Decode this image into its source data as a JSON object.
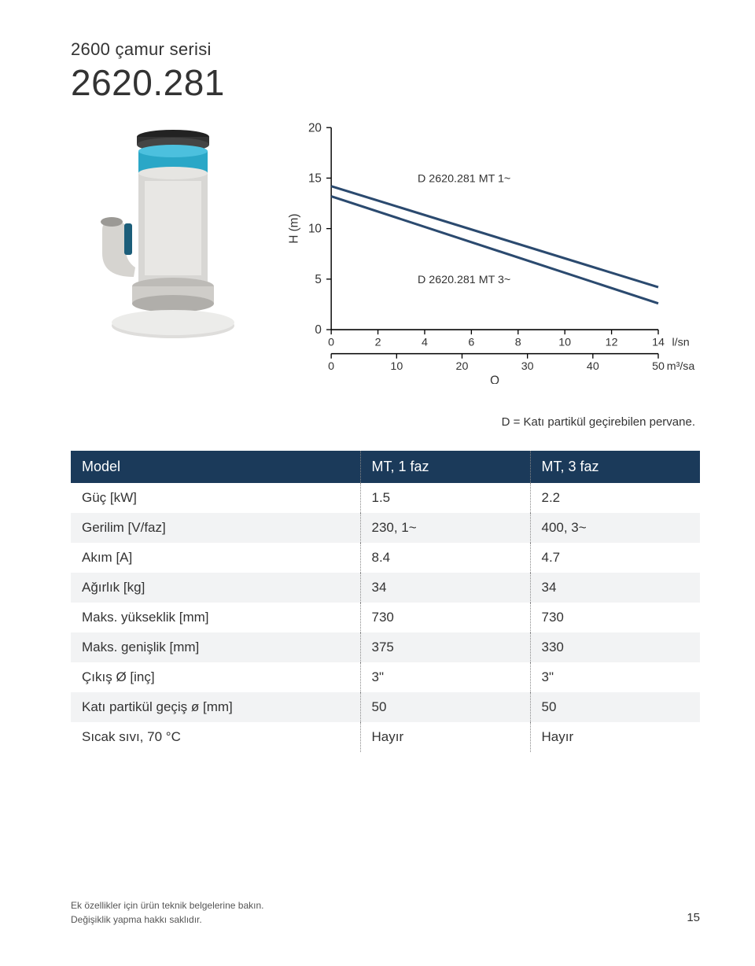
{
  "header": {
    "series_label": "2600 çamur serisi",
    "model_number": "2620.281"
  },
  "chart": {
    "type": "line",
    "y_label": "H (m)",
    "x_label": "Q",
    "ylim": [
      0,
      20
    ],
    "ytick_step": 5,
    "y_ticks": [
      0,
      5,
      10,
      15,
      20
    ],
    "x_primary_max": 14,
    "x_primary_ticks": [
      0,
      2,
      4,
      6,
      8,
      10,
      12,
      14
    ],
    "x_primary_unit": "l/sn",
    "x_secondary_max": 50,
    "x_secondary_ticks": [
      0,
      10,
      20,
      30,
      40,
      50
    ],
    "x_secondary_unit": "m³/sa",
    "line_color": "#2b4a6f",
    "line_width": 3,
    "axis_color": "#000000",
    "background_color": "#ffffff",
    "series": [
      {
        "label": "D 2620.281 MT 1~",
        "label_fontsize": 14,
        "points": [
          [
            0.0,
            14.2
          ],
          [
            14.0,
            4.2
          ]
        ]
      },
      {
        "label": "D 2620.281 MT 3~",
        "label_fontsize": 14,
        "points": [
          [
            0.0,
            13.2
          ],
          [
            14.0,
            2.6
          ]
        ]
      }
    ]
  },
  "footnote": "D = Katı partikül geçirebilen pervane.",
  "table": {
    "header_bg": "#1b3a5a",
    "alt_row_bg": "#f2f3f4",
    "dotted_color": "#888888",
    "columns": [
      "Model",
      "MT, 1 faz",
      "MT, 3 faz"
    ],
    "rows": [
      [
        "Güç [kW]",
        "1.5",
        "2.2"
      ],
      [
        "Gerilim [V/faz]",
        "230, 1~",
        "400, 3~"
      ],
      [
        "Akım [A]",
        "8.4",
        "4.7"
      ],
      [
        "Ağırlık [kg]",
        "34",
        "34"
      ],
      [
        "Maks. yükseklik [mm]",
        "730",
        "730"
      ],
      [
        "Maks. genişlik [mm]",
        "375",
        "330"
      ],
      [
        "Çıkış Ø [inç]",
        "3\"",
        "3\""
      ],
      [
        "Katı partikül geçiş ø [mm]",
        "50",
        "50"
      ],
      [
        "Sıcak sıvı, 70 °C",
        "Hayır",
        "Hayır"
      ]
    ]
  },
  "bottom": {
    "line1": "Ek özellikler için ürün teknik belgelerine bakın.",
    "line2": "Değişiklik yapma hakkı saklıdır.",
    "page_number": "15"
  }
}
